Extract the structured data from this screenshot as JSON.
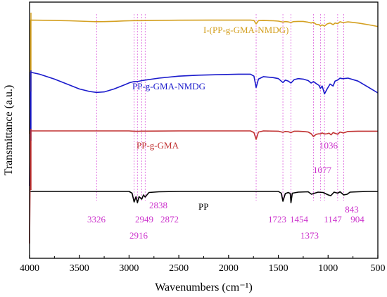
{
  "chart_data": {
    "type": "line",
    "xlabel": "Wavenumbers (cm⁻¹)",
    "ylabel": "Transmittance (a.u.)",
    "xlim": [
      4000,
      500
    ],
    "x_reversed": true,
    "x_ticks": [
      4000,
      3500,
      3000,
      2500,
      2000,
      1500,
      1000,
      500
    ],
    "y_ticks_shown": false,
    "grid": false,
    "reference_line_color": "#e070e0",
    "reference_lines": [
      3326,
      2949,
      2916,
      2872,
      2838,
      1723,
      1454,
      1373,
      1147,
      1077,
      1036,
      904,
      843
    ],
    "peak_labels": [
      "3326",
      "2949",
      "2916",
      "2872",
      "2838",
      "1723",
      "1454",
      "1373",
      "1147",
      "1077",
      "1036",
      "904",
      "843"
    ],
    "series": [
      {
        "name": "I-(PP-g-GMA-NMDG)",
        "color": "#d4a020",
        "points": [
          [
            3990,
            0.16
          ],
          [
            3800,
            0.12
          ],
          [
            3600,
            0.06
          ],
          [
            3500,
            0.0
          ],
          [
            3400,
            -0.06
          ],
          [
            3326,
            -0.09
          ],
          [
            3250,
            -0.08
          ],
          [
            3150,
            -0.03
          ],
          [
            3050,
            0.03
          ],
          [
            2990,
            0.06
          ],
          [
            2949,
            0.08
          ],
          [
            2916,
            0.08
          ],
          [
            2880,
            0.08
          ],
          [
            2838,
            0.09
          ],
          [
            2700,
            0.12
          ],
          [
            2500,
            0.14
          ],
          [
            2200,
            0.15
          ],
          [
            1900,
            0.15
          ],
          [
            1780,
            0.15
          ],
          [
            1745,
            0.1
          ],
          [
            1723,
            -0.45
          ],
          [
            1700,
            0.08
          ],
          [
            1650,
            0.1
          ],
          [
            1550,
            0.06
          ],
          [
            1500,
            0.0
          ],
          [
            1454,
            -0.16
          ],
          [
            1430,
            -0.08
          ],
          [
            1400,
            -0.12
          ],
          [
            1373,
            -0.22
          ],
          [
            1350,
            -0.08
          ],
          [
            1300,
            -0.05
          ],
          [
            1250,
            -0.04
          ],
          [
            1200,
            -0.18
          ],
          [
            1170,
            -0.3
          ],
          [
            1147,
            -0.2
          ],
          [
            1120,
            -0.5
          ],
          [
            1090,
            -0.55
          ],
          [
            1077,
            -0.75
          ],
          [
            1060,
            -0.6
          ],
          [
            1036,
            -0.78
          ],
          [
            1010,
            -0.45
          ],
          [
            980,
            -0.3
          ],
          [
            950,
            -0.55
          ],
          [
            930,
            -0.3
          ],
          [
            904,
            -0.4
          ],
          [
            880,
            -0.1
          ],
          [
            860,
            -0.2
          ],
          [
            843,
            -0.22
          ],
          [
            800,
            -0.12
          ],
          [
            700,
            -0.3
          ],
          [
            600,
            -0.55
          ],
          [
            500,
            -0.85
          ]
        ]
      },
      {
        "name": "PP-g-GMA-NMDG",
        "color": "#1a1acc",
        "points": [
          [
            3990,
            0.1
          ],
          [
            3900,
            -0.1
          ],
          [
            3750,
            -0.6
          ],
          [
            3600,
            -1.2
          ],
          [
            3500,
            -1.6
          ],
          [
            3400,
            -1.85
          ],
          [
            3326,
            -1.95
          ],
          [
            3250,
            -1.9
          ],
          [
            3150,
            -1.6
          ],
          [
            3050,
            -1.2
          ],
          [
            2990,
            -0.95
          ],
          [
            2949,
            -0.85
          ],
          [
            2916,
            -0.85
          ],
          [
            2872,
            -0.75
          ],
          [
            2838,
            -0.7
          ],
          [
            2700,
            -0.5
          ],
          [
            2500,
            -0.3
          ],
          [
            2300,
            -0.2
          ],
          [
            2100,
            -0.15
          ],
          [
            1900,
            -0.1
          ],
          [
            1780,
            -0.1
          ],
          [
            1745,
            -0.3
          ],
          [
            1723,
            -1.45
          ],
          [
            1700,
            -0.6
          ],
          [
            1650,
            -0.35
          ],
          [
            1550,
            -0.45
          ],
          [
            1500,
            -0.55
          ],
          [
            1454,
            -0.95
          ],
          [
            1430,
            -0.7
          ],
          [
            1400,
            -0.8
          ],
          [
            1373,
            -1.0
          ],
          [
            1340,
            -0.65
          ],
          [
            1300,
            -0.55
          ],
          [
            1250,
            -0.6
          ],
          [
            1200,
            -0.75
          ],
          [
            1170,
            -1.0
          ],
          [
            1147,
            -0.85
          ],
          [
            1120,
            -1.05
          ],
          [
            1090,
            -1.25
          ],
          [
            1077,
            -1.55
          ],
          [
            1060,
            -1.3
          ],
          [
            1036,
            -2.1
          ],
          [
            1010,
            -1.6
          ],
          [
            980,
            -1.1
          ],
          [
            950,
            -1.3
          ],
          [
            930,
            -0.8
          ],
          [
            904,
            -0.7
          ],
          [
            880,
            -0.5
          ],
          [
            860,
            -0.55
          ],
          [
            843,
            -0.55
          ],
          [
            800,
            -0.5
          ],
          [
            700,
            -0.8
          ],
          [
            600,
            -1.4
          ],
          [
            500,
            -2.0
          ]
        ]
      },
      {
        "name": "PP-g-GMA",
        "color": "#c03030",
        "points": [
          [
            3990,
            0.0
          ],
          [
            3500,
            0.0
          ],
          [
            3326,
            0.0
          ],
          [
            3000,
            0.0
          ],
          [
            2949,
            -0.05
          ],
          [
            2916,
            -0.08
          ],
          [
            2872,
            -0.04
          ],
          [
            2838,
            -0.04
          ],
          [
            2500,
            0.0
          ],
          [
            2000,
            0.0
          ],
          [
            1780,
            0.0
          ],
          [
            1745,
            -0.3
          ],
          [
            1723,
            -1.5
          ],
          [
            1700,
            -0.2
          ],
          [
            1650,
            0.0
          ],
          [
            1500,
            -0.05
          ],
          [
            1454,
            -0.25
          ],
          [
            1430,
            -0.1
          ],
          [
            1400,
            -0.15
          ],
          [
            1373,
            -0.3
          ],
          [
            1340,
            -0.05
          ],
          [
            1300,
            -0.05
          ],
          [
            1250,
            -0.1
          ],
          [
            1200,
            -0.2
          ],
          [
            1170,
            -0.5
          ],
          [
            1147,
            -1.0
          ],
          [
            1120,
            -0.6
          ],
          [
            1090,
            -0.5
          ],
          [
            1077,
            -0.55
          ],
          [
            1060,
            -0.35
          ],
          [
            1036,
            -0.55
          ],
          [
            1010,
            -0.5
          ],
          [
            990,
            -0.4
          ],
          [
            970,
            -0.7
          ],
          [
            950,
            -0.3
          ],
          [
            904,
            -0.6
          ],
          [
            880,
            -0.2
          ],
          [
            860,
            -0.3
          ],
          [
            843,
            -0.35
          ],
          [
            800,
            -0.1
          ],
          [
            700,
            -0.05
          ],
          [
            600,
            -0.05
          ],
          [
            500,
            -0.05
          ]
        ]
      },
      {
        "name": "PP",
        "color": "#000000",
        "points": [
          [
            3990,
            0.0
          ],
          [
            3500,
            0.0
          ],
          [
            3326,
            0.0
          ],
          [
            3000,
            0.0
          ],
          [
            2970,
            -0.5
          ],
          [
            2949,
            -3.0
          ],
          [
            2930,
            -1.5
          ],
          [
            2916,
            -3.2
          ],
          [
            2900,
            -1.5
          ],
          [
            2872,
            -2.2
          ],
          [
            2855,
            -1.0
          ],
          [
            2838,
            -1.6
          ],
          [
            2800,
            -0.3
          ],
          [
            2700,
            -0.1
          ],
          [
            2500,
            0.0
          ],
          [
            2000,
            0.0
          ],
          [
            1723,
            0.0
          ],
          [
            1500,
            0.0
          ],
          [
            1470,
            -0.5
          ],
          [
            1454,
            -2.8
          ],
          [
            1430,
            -0.6
          ],
          [
            1400,
            -0.3
          ],
          [
            1380,
            -0.6
          ],
          [
            1373,
            -3.2
          ],
          [
            1360,
            -0.5
          ],
          [
            1300,
            -0.2
          ],
          [
            1200,
            -0.1
          ],
          [
            1167,
            -0.8
          ],
          [
            1147,
            -0.6
          ],
          [
            1100,
            -0.2
          ],
          [
            1050,
            -0.3
          ],
          [
            998,
            -1.0
          ],
          [
            973,
            -1.2
          ],
          [
            940,
            -0.2
          ],
          [
            904,
            -0.5
          ],
          [
            880,
            -0.1
          ],
          [
            843,
            -1.0
          ],
          [
            808,
            -0.8
          ],
          [
            780,
            -0.2
          ],
          [
            700,
            -0.1
          ],
          [
            600,
            0.0
          ],
          [
            500,
            0.0
          ]
        ]
      }
    ]
  }
}
